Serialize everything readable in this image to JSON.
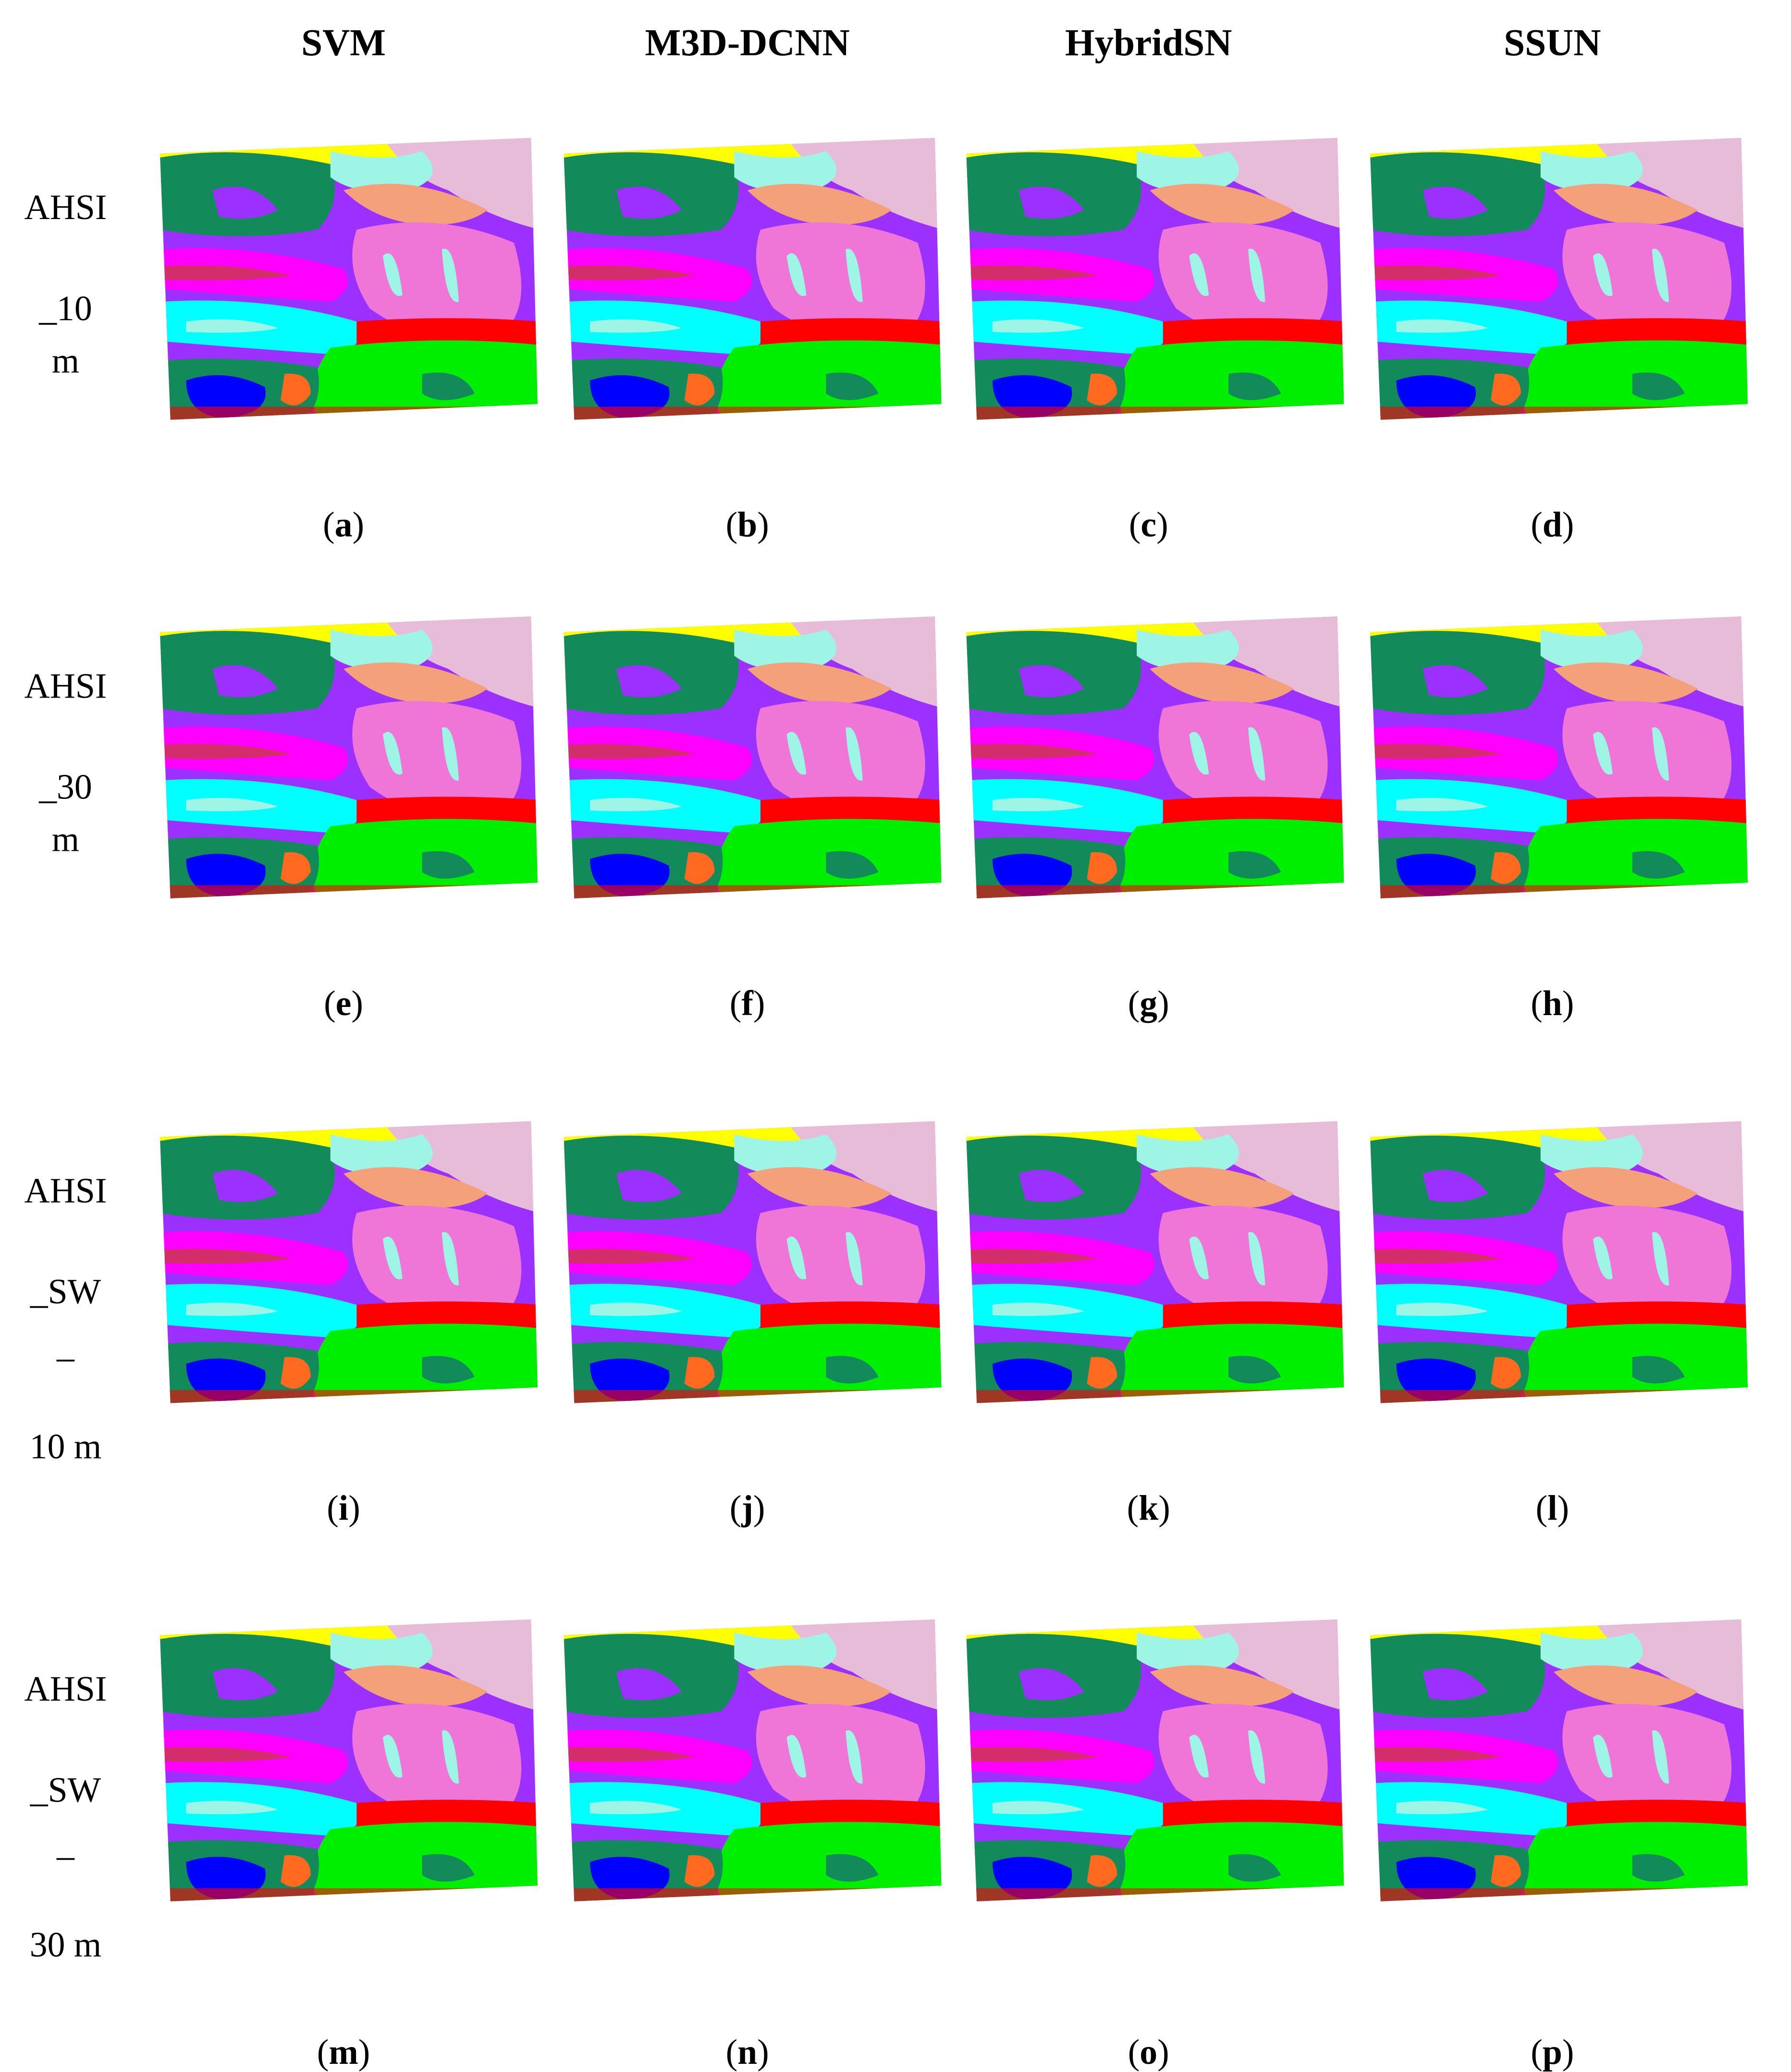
{
  "column_headers": [
    "SVM",
    "M3D-DCNN",
    "HybridSN",
    "SSUN"
  ],
  "rows": [
    {
      "label_lines": [
        "AHSI",
        "_10",
        "m"
      ],
      "panels": [
        "(a)",
        "(b)",
        "(c)",
        "(d)"
      ]
    },
    {
      "label_lines": [
        "AHSI",
        "_30",
        "m"
      ],
      "panels": [
        "(e)",
        "(f)",
        "(g)",
        "(h)"
      ]
    },
    {
      "label_lines": [
        "AHSI",
        "_SW",
        "–",
        "10 m"
      ],
      "panels": [
        "(i)",
        "(j)",
        "(k)",
        "(l)"
      ]
    },
    {
      "label_lines": [
        "AHSI",
        "_SW",
        "–",
        "30 m"
      ],
      "panels": [
        "(m)",
        "(n)",
        "(o)",
        "(p)"
      ]
    }
  ]
}
